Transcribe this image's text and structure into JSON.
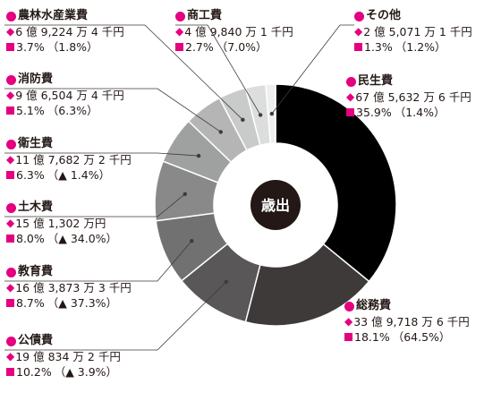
{
  "colors": {
    "accent": "#e4007f",
    "center": "#231815",
    "text": "#231815"
  },
  "chart_data": {
    "type": "pie",
    "center_label": "歳出",
    "slices": [
      {
        "name": "民生費",
        "amount": "67 億 5,632 万 6 千円",
        "share": 35.9,
        "share_text": "35.9%",
        "change_text": "（1.4%）",
        "color": "#000000"
      },
      {
        "name": "総務費",
        "amount": "33 億 9,718 万 6 千円",
        "share": 18.1,
        "share_text": "18.1%",
        "change_text": "（64.5%）",
        "color": "#3e3a39"
      },
      {
        "name": "公債費",
        "amount": "19 億 834 万 2 千円",
        "share": 10.2,
        "share_text": "10.2%",
        "change_text": "（▲ 3.9%）",
        "color": "#595757"
      },
      {
        "name": "教育費",
        "amount": "16 億 3,873 万 3 千円",
        "share": 8.7,
        "share_text": "8.7%",
        "change_text": "（▲ 37.3%）",
        "color": "#727171"
      },
      {
        "name": "土木費",
        "amount": "15 億 1,302 万円",
        "share": 8.0,
        "share_text": "8.0%",
        "change_text": "（▲ 34.0%）",
        "color": "#898989"
      },
      {
        "name": "衛生費",
        "amount": "11 億 7,682 万 2 千円",
        "share": 6.3,
        "share_text": "6.3%",
        "change_text": "（▲ 1.4%）",
        "color": "#9fa0a0"
      },
      {
        "name": "消防費",
        "amount": "9 億 6,504 万 4 千円",
        "share": 5.1,
        "share_text": "5.1%",
        "change_text": "（6.3%）",
        "color": "#b5b5b6"
      },
      {
        "name": "農林水産業費",
        "amount": "6 億 9,224 万 4 千円",
        "share": 3.7,
        "share_text": "3.7%",
        "change_text": "（1.8%）",
        "color": "#c9caca"
      },
      {
        "name": "商工費",
        "amount": "4 億 9,840 万 1 千円",
        "share": 2.7,
        "share_text": "2.7%",
        "change_text": "（7.0%）",
        "color": "#dcdddd"
      },
      {
        "name": "その他",
        "amount": "2 億 5,071 万 1 千円",
        "share": 1.3,
        "share_text": "1.3%",
        "change_text": "（1.2%）",
        "color": "#eeeeef"
      }
    ]
  }
}
